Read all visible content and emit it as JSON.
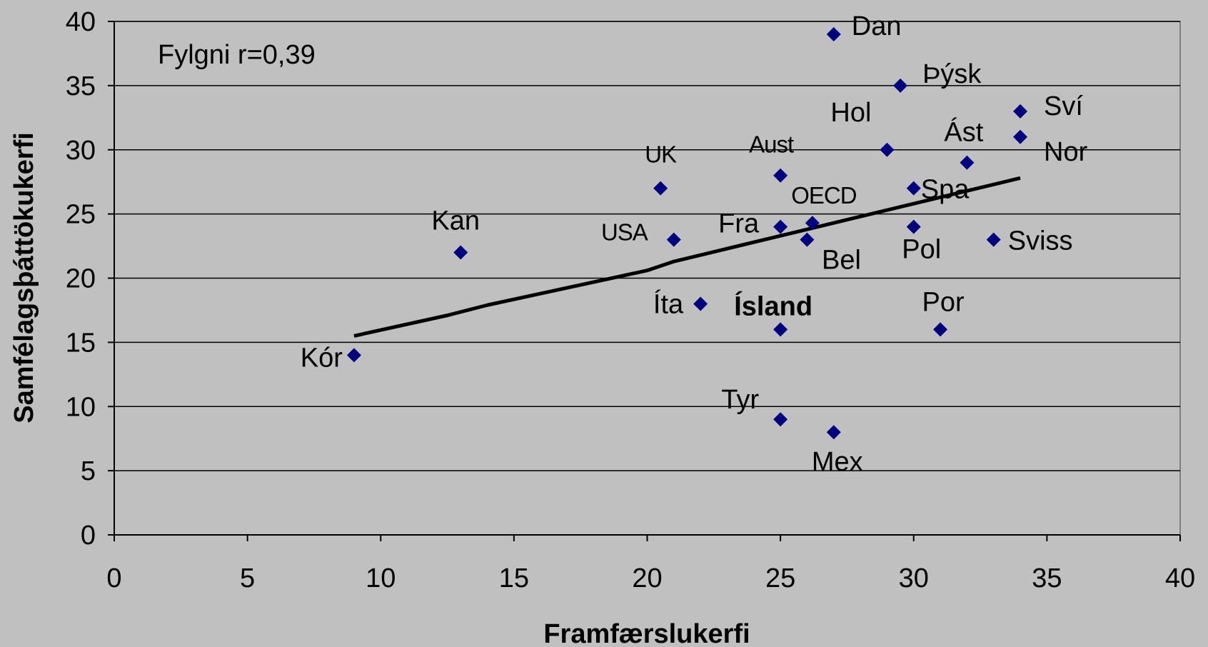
{
  "chart_data": {
    "type": "scatter",
    "xlabel": "Framfærslukerfi",
    "ylabel": "Samfélagsþáttökukerfi",
    "xlim": [
      0,
      40
    ],
    "ylim": [
      0,
      40
    ],
    "xticks": [
      "0",
      "5",
      "10",
      "15",
      "20",
      "25",
      "30",
      "35",
      "40"
    ],
    "yticks": [
      "0",
      "5",
      "10",
      "15",
      "20",
      "25",
      "30",
      "35",
      "40"
    ],
    "grid": "horizontal",
    "annotation": "Fylgni r=0,39",
    "marker_color": "#00007f",
    "trendline_color": "#000000",
    "points": [
      {
        "label": "Dan",
        "x": 27,
        "y": 39
      },
      {
        "label": "Þýsk",
        "x": 29.5,
        "y": 35
      },
      {
        "label": "Sví",
        "x": 34,
        "y": 33
      },
      {
        "label": "Nor",
        "x": 34,
        "y": 31
      },
      {
        "label": "Hol",
        "x": 29,
        "y": 30
      },
      {
        "label": "Ást",
        "x": 32,
        "y": 29
      },
      {
        "label": "UK",
        "x": 20.5,
        "y": 27
      },
      {
        "label": "Aust",
        "x": 25,
        "y": 28
      },
      {
        "label": "Spa",
        "x": 30,
        "y": 27
      },
      {
        "label": "OECD",
        "x": 26.2,
        "y": 24.3
      },
      {
        "label": "Fra",
        "x": 25,
        "y": 24
      },
      {
        "label": "Pol",
        "x": 30,
        "y": 24
      },
      {
        "label": "Sviss",
        "x": 33,
        "y": 23
      },
      {
        "label": "USA",
        "x": 21,
        "y": 23
      },
      {
        "label": "Bel",
        "x": 26,
        "y": 23
      },
      {
        "label": "Kan",
        "x": 13,
        "y": 22
      },
      {
        "label": "Íta",
        "x": 22,
        "y": 18
      },
      {
        "label": "Ísland",
        "x": 25,
        "y": 16
      },
      {
        "label": "Por",
        "x": 31,
        "y": 16
      },
      {
        "label": "Kór",
        "x": 9,
        "y": 14
      },
      {
        "label": "Tyr",
        "x": 25,
        "y": 9
      },
      {
        "label": "Mex",
        "x": 27,
        "y": 8
      }
    ],
    "trendline": [
      {
        "x": 9,
        "y": 15.5
      },
      {
        "x": 12.5,
        "y": 17.1
      },
      {
        "x": 14,
        "y": 17.9
      },
      {
        "x": 20,
        "y": 20.6
      },
      {
        "x": 21,
        "y": 21.3
      },
      {
        "x": 25,
        "y": 23.3
      },
      {
        "x": 27,
        "y": 24.3
      },
      {
        "x": 34,
        "y": 27.8
      }
    ]
  }
}
